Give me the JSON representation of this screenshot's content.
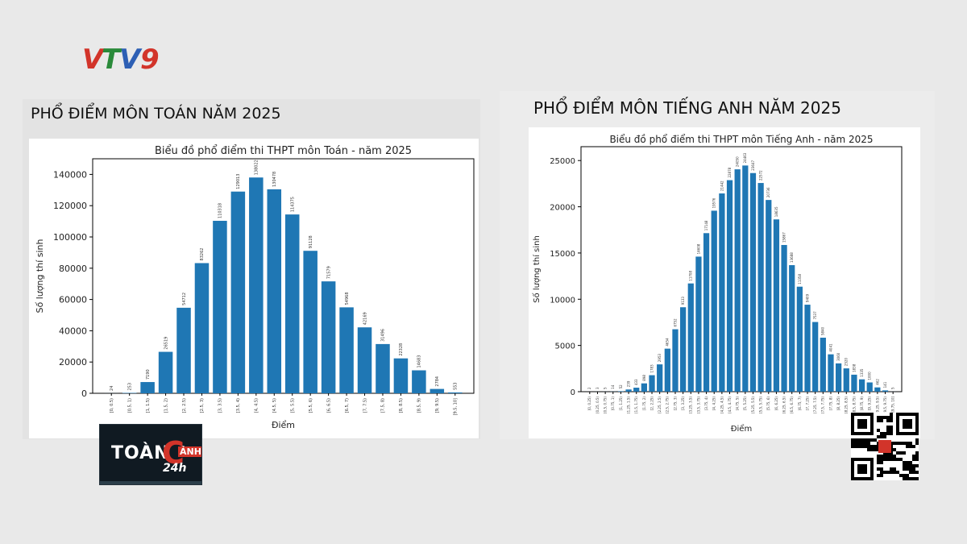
{
  "logo": {
    "text": "VTV9"
  },
  "panels": {
    "left_heading": "PHỔ ĐIỂM MÔN TOÁN NĂM 2025",
    "right_heading": "PHỔ ĐIỂM MÔN TIẾNG ANH NĂM 2025"
  },
  "badge": {
    "word1": "TOÀN",
    "letter": "C",
    "word2": "ẢNH",
    "suffix": "24h"
  },
  "colors": {
    "bar": "#1f77b4",
    "accent_red": "#d2342a"
  },
  "chart_data": [
    {
      "type": "bar",
      "title": "Biểu đồ phổ điểm thi THPT môn Toán - năm 2025",
      "xlabel": "Điểm",
      "ylabel": "Số lượng thí sinh",
      "ylim": [
        0,
        150000
      ],
      "yticks": [
        0,
        20000,
        40000,
        60000,
        80000,
        100000,
        120000,
        140000
      ],
      "categories": [
        "[0, 0.5)",
        "[0.5, 1)",
        "[1, 1.5)",
        "[1.5, 2)",
        "[2, 2.5)",
        "[2.5, 3)",
        "[3, 3.5)",
        "[3.5, 4)",
        "[4, 4.5)",
        "[4.5, 5)",
        "[5, 5.5)",
        "[5.5, 6)",
        "[6, 6.5)",
        "[6.5, 7)",
        "[7, 7.5)",
        "[7.5, 8)",
        "[8, 8.5)",
        "[8.5, 9)",
        "[9, 9.5)",
        "[9.5, 10]"
      ],
      "values": [
        24,
        253,
        7190,
        26519,
        54712,
        83262,
        110318,
        129013,
        138022,
        130478,
        114375,
        91128,
        71579,
        54968,
        42169,
        31496,
        22328,
        14683,
        2784,
        553
      ]
    },
    {
      "type": "bar",
      "title": "Biểu đồ phổ điểm thi THPT môn Tiếng Anh - năm 2025",
      "xlabel": "Điểm",
      "ylabel": "Số lượng thí sinh",
      "ylim": [
        0,
        26500
      ],
      "yticks": [
        0,
        5000,
        10000,
        15000,
        20000,
        25000
      ],
      "categories": [
        "[0, 0.25)",
        "[0.25, 0.5)",
        "[0.5, 0.75)",
        "[0.75, 1)",
        "[1, 1.25)",
        "[1.25, 1.5)",
        "[1.5, 1.75)",
        "[1.75, 2)",
        "[2, 2.25)",
        "[2.25, 2.5)",
        "[2.5, 2.75)",
        "[2.75, 3)",
        "[3, 3.25)",
        "[3.25, 3.5)",
        "[3.5, 3.75)",
        "[3.75, 4)",
        "[4, 4.25)",
        "[4.25, 4.5)",
        "[4.5, 4.75)",
        "[4.75, 5)",
        "[5, 5.25)",
        "[5.25, 5.5)",
        "[5.5, 5.75)",
        "[5.75, 6)",
        "[6, 6.25)",
        "[6.25, 6.5)",
        "[6.5, 6.75)",
        "[6.75, 7)",
        "[7, 7.25)",
        "[7.25, 7.5)",
        "[7.5, 7.75)",
        "[7.75, 8)",
        "[8, 8.25)",
        "[8.25, 8.5)",
        "[8.5, 8.75)",
        "[8.75, 9)",
        "[9, 9.25)",
        "[9.25, 9.5)",
        "[9.5, 9.75)",
        "[9.75, 10]"
      ],
      "values": [
        2,
        3,
        5,
        14,
        52,
        239,
        433,
        898,
        1783,
        2953,
        4654,
        6752,
        9133,
        11708,
        14608,
        17148,
        19576,
        21442,
        22878,
        24050,
        24463,
        23647,
        22572,
        20736,
        18635,
        15867,
        13688,
        11358,
        9409,
        7537,
        5840,
        4041,
        3060,
        2520,
        1838,
        1335,
        1000,
        462,
        141,
        5
      ]
    }
  ]
}
